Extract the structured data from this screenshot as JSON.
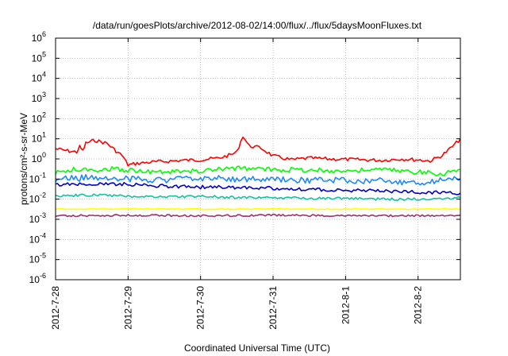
{
  "chart_data": {
    "type": "line",
    "title": "/data/run/goesPlots/archive/2012-08-02/14:00/flux/../flux/5daysMoonFluxes.txt",
    "xlabel": "Coordinated Universal Time (UTC)",
    "ylabel": "protons/cm²-s-sr-MeV",
    "x_ticks": [
      "2012-7-28",
      "2012-7-29",
      "2012-7-30",
      "2012-7-31",
      "2012-8-1",
      "2012-8-2"
    ],
    "xlim": [
      "2012-07-28T00:00",
      "2012-08-02T14:00"
    ],
    "y_scale": "log",
    "ylim": [
      1e-06,
      1000000.0
    ],
    "y_ticks": [
      {
        "base": "10",
        "exp": "-6"
      },
      {
        "base": "10",
        "exp": "-5"
      },
      {
        "base": "10",
        "exp": "-4"
      },
      {
        "base": "10",
        "exp": "-3"
      },
      {
        "base": "10",
        "exp": "-2"
      },
      {
        "base": "10",
        "exp": "-1"
      },
      {
        "base": "10",
        "exp": "0"
      },
      {
        "base": "10",
        "exp": "1"
      },
      {
        "base": "10",
        "exp": "2"
      },
      {
        "base": "10",
        "exp": "3"
      },
      {
        "base": "10",
        "exp": "4"
      },
      {
        "base": "10",
        "exp": "5"
      },
      {
        "base": "10",
        "exp": "6"
      }
    ],
    "grid": true,
    "series": [
      {
        "color": "#ff0000",
        "points": [
          [
            "2012-07-28T00:00",
            3.2
          ],
          [
            "2012-07-28T04:00",
            2.5
          ],
          [
            "2012-07-28T07:00",
            2.2
          ],
          [
            "2012-07-28T08:00",
            4
          ],
          [
            "2012-07-28T09:00",
            2.5
          ],
          [
            "2012-07-28T10:00",
            6
          ],
          [
            "2012-07-28T13:00",
            8.5
          ],
          [
            "2012-07-28T17:00",
            6
          ],
          [
            "2012-07-28T20:00",
            2.5
          ],
          [
            "2012-07-28T22:00",
            1.5
          ],
          [
            "2012-07-29T00:00",
            0.5
          ],
          [
            "2012-07-29T03:00",
            0.6
          ],
          [
            "2012-07-29T08:00",
            0.7
          ],
          [
            "2012-07-29T12:00",
            0.75
          ],
          [
            "2012-07-29T18:00",
            0.85
          ],
          [
            "2012-07-30T00:00",
            0.9
          ],
          [
            "2012-07-30T06:00",
            1.1
          ],
          [
            "2012-07-30T10:00",
            1.6
          ],
          [
            "2012-07-30T12:00",
            2.2
          ],
          [
            "2012-07-30T14:00",
            14
          ],
          [
            "2012-07-30T16:00",
            4.5
          ],
          [
            "2012-07-30T20:00",
            3.5
          ],
          [
            "2012-07-31T00:00",
            1.4
          ],
          [
            "2012-07-31T06:00",
            0.9
          ],
          [
            "2012-07-31T12:00",
            1.1
          ],
          [
            "2012-07-31T18:00",
            1.0
          ],
          [
            "2012-08-01T00:00",
            0.95
          ],
          [
            "2012-08-01T06:00",
            0.9
          ],
          [
            "2012-08-01T12:00",
            0.85
          ],
          [
            "2012-08-01T18:00",
            1.0
          ],
          [
            "2012-08-02T00:00",
            0.9
          ],
          [
            "2012-08-02T04:00",
            0.8
          ],
          [
            "2012-08-02T08:00",
            1.5
          ],
          [
            "2012-08-02T12:00",
            5
          ],
          [
            "2012-08-02T14:00",
            10
          ]
        ]
      },
      {
        "color": "#00ff00",
        "points": [
          [
            "2012-07-28T00:00",
            0.2
          ],
          [
            "2012-07-28T06:00",
            0.3
          ],
          [
            "2012-07-28T12:00",
            0.28
          ],
          [
            "2012-07-28T18:00",
            0.32
          ],
          [
            "2012-07-29T00:00",
            0.28
          ],
          [
            "2012-07-29T12:00",
            0.22
          ],
          [
            "2012-07-30T00:00",
            0.25
          ],
          [
            "2012-07-30T12:00",
            0.35
          ],
          [
            "2012-07-31T00:00",
            0.3
          ],
          [
            "2012-07-31T12:00",
            0.28
          ],
          [
            "2012-08-01T00:00",
            0.25
          ],
          [
            "2012-08-01T12:00",
            0.3
          ],
          [
            "2012-08-02T00:00",
            0.22
          ],
          [
            "2012-08-02T08:00",
            0.18
          ],
          [
            "2012-08-02T14:00",
            0.3
          ]
        ]
      },
      {
        "color": "#1e88ff",
        "points": [
          [
            "2012-07-28T00:00",
            0.1
          ],
          [
            "2012-07-28T12:00",
            0.12
          ],
          [
            "2012-07-29T00:00",
            0.1
          ],
          [
            "2012-07-29T12:00",
            0.09
          ],
          [
            "2012-07-30T00:00",
            0.11
          ],
          [
            "2012-07-30T12:00",
            0.1
          ],
          [
            "2012-07-31T00:00",
            0.09
          ],
          [
            "2012-07-31T12:00",
            0.085
          ],
          [
            "2012-08-01T00:00",
            0.09
          ],
          [
            "2012-08-01T12:00",
            0.08
          ],
          [
            "2012-08-02T00:00",
            0.07
          ],
          [
            "2012-08-02T14:00",
            0.1
          ]
        ]
      },
      {
        "color": "#0000cc",
        "points": [
          [
            "2012-07-28T00:00",
            0.05
          ],
          [
            "2012-07-28T12:00",
            0.06
          ],
          [
            "2012-07-29T00:00",
            0.055
          ],
          [
            "2012-07-29T12:00",
            0.045
          ],
          [
            "2012-07-30T00:00",
            0.04
          ],
          [
            "2012-07-30T12:00",
            0.038
          ],
          [
            "2012-07-31T00:00",
            0.035
          ],
          [
            "2012-07-31T12:00",
            0.03
          ],
          [
            "2012-08-01T00:00",
            0.028
          ],
          [
            "2012-08-01T12:00",
            0.026
          ],
          [
            "2012-08-02T00:00",
            0.022
          ],
          [
            "2012-08-02T14:00",
            0.02
          ]
        ]
      },
      {
        "color": "#11c3a0",
        "points": [
          [
            "2012-07-28T00:00",
            0.015
          ],
          [
            "2012-07-28T12:00",
            0.016
          ],
          [
            "2012-07-29T00:00",
            0.014
          ],
          [
            "2012-07-29T12:00",
            0.013
          ],
          [
            "2012-07-30T00:00",
            0.014
          ],
          [
            "2012-07-30T12:00",
            0.012
          ],
          [
            "2012-07-31T00:00",
            0.012
          ],
          [
            "2012-07-31T12:00",
            0.011
          ],
          [
            "2012-08-01T00:00",
            0.011
          ],
          [
            "2012-08-01T12:00",
            0.01
          ],
          [
            "2012-08-02T00:00",
            0.01
          ],
          [
            "2012-08-02T14:00",
            0.012
          ]
        ]
      },
      {
        "color": "#ffff00",
        "points": [
          [
            "2012-07-28T00:00",
            0.0032
          ],
          [
            "2012-07-29T00:00",
            0.0033
          ],
          [
            "2012-07-30T00:00",
            0.0032
          ],
          [
            "2012-07-31T00:00",
            0.0033
          ],
          [
            "2012-08-01T00:00",
            0.0032
          ],
          [
            "2012-08-02T00:00",
            0.0032
          ],
          [
            "2012-08-02T14:00",
            0.0033
          ]
        ]
      },
      {
        "color": "#a0306a",
        "points": [
          [
            "2012-07-28T00:00",
            0.0015
          ],
          [
            "2012-07-29T00:00",
            0.0016
          ],
          [
            "2012-07-30T00:00",
            0.0015
          ],
          [
            "2012-07-31T00:00",
            0.0016
          ],
          [
            "2012-08-01T00:00",
            0.0015
          ],
          [
            "2012-08-02T00:00",
            0.0015
          ],
          [
            "2012-08-02T14:00",
            0.0016
          ]
        ]
      }
    ]
  }
}
